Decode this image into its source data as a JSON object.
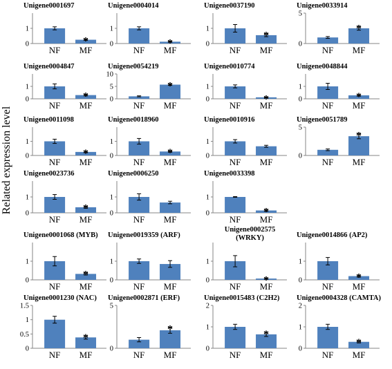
{
  "y_axis_label": "Related expression level",
  "colors": {
    "bar": "#4f81bd",
    "axis": "#868686",
    "error_bar": "#000000"
  },
  "chart_data": [
    {
      "type": "bar",
      "title": "Unigene0001697",
      "categories": [
        "NF",
        "MF"
      ],
      "values": [
        1.0,
        0.25
      ],
      "errors": [
        0.1,
        0.04
      ],
      "significant": [
        false,
        true
      ],
      "ylim": [
        0,
        2
      ],
      "yticks": [
        0,
        1
      ]
    },
    {
      "type": "bar",
      "title": "Unigene0004014",
      "categories": [
        "NF",
        "MF"
      ],
      "values": [
        1.0,
        0.12
      ],
      "errors": [
        0.1,
        0.03
      ],
      "significant": [
        false,
        true
      ],
      "ylim": [
        0,
        2
      ],
      "yticks": [
        0,
        1
      ]
    },
    {
      "type": "bar",
      "title": "Unigene0037190",
      "categories": [
        "NF",
        "MF"
      ],
      "values": [
        1.0,
        0.55
      ],
      "errors": [
        0.25,
        0.1
      ],
      "significant": [
        false,
        true
      ],
      "ylim": [
        0,
        2
      ],
      "yticks": [
        0,
        1
      ]
    },
    {
      "type": "bar",
      "title": "Unigene0033914",
      "categories": [
        "NF",
        "MF"
      ],
      "values": [
        1.0,
        2.5
      ],
      "errors": [
        0.15,
        0.3
      ],
      "significant": [
        false,
        true
      ],
      "ylim": [
        0,
        5
      ],
      "yticks": [
        0,
        5
      ]
    },
    {
      "type": "bar",
      "title": "Unigene0004847",
      "categories": [
        "NF",
        "MF"
      ],
      "values": [
        1.0,
        0.3
      ],
      "errors": [
        0.2,
        0.06
      ],
      "significant": [
        false,
        true
      ],
      "ylim": [
        0,
        2
      ],
      "yticks": [
        0,
        1
      ]
    },
    {
      "type": "bar",
      "title": "Unigene0054219",
      "categories": [
        "NF",
        "MF"
      ],
      "values": [
        1.0,
        5.7
      ],
      "errors": [
        0.2,
        0.3
      ],
      "significant": [
        false,
        true
      ],
      "ylim": [
        0,
        10
      ],
      "yticks": [
        0,
        5,
        10
      ]
    },
    {
      "type": "bar",
      "title": "Unigene0010774",
      "categories": [
        "NF",
        "MF"
      ],
      "values": [
        1.0,
        0.12
      ],
      "errors": [
        0.12,
        0.03
      ],
      "significant": [
        false,
        true
      ],
      "ylim": [
        0,
        2
      ],
      "yticks": [
        0,
        1
      ]
    },
    {
      "type": "bar",
      "title": "Unigene0048844",
      "categories": [
        "NF",
        "MF"
      ],
      "values": [
        1.0,
        0.28
      ],
      "errors": [
        0.25,
        0.06
      ],
      "significant": [
        false,
        true
      ],
      "ylim": [
        0,
        2
      ],
      "yticks": [
        0,
        1
      ]
    },
    {
      "type": "bar",
      "title": "Unigene0011098",
      "categories": [
        "NF",
        "MF"
      ],
      "values": [
        1.0,
        0.25
      ],
      "errors": [
        0.15,
        0.05
      ],
      "significant": [
        false,
        true
      ],
      "ylim": [
        0,
        2
      ],
      "yticks": [
        0,
        1
      ]
    },
    {
      "type": "bar",
      "title": "Unigene0018960",
      "categories": [
        "NF",
        "MF"
      ],
      "values": [
        1.0,
        0.28
      ],
      "errors": [
        0.2,
        0.05
      ],
      "significant": [
        false,
        true
      ],
      "ylim": [
        0,
        2
      ],
      "yticks": [
        0,
        1
      ]
    },
    {
      "type": "bar",
      "title": "Unigene0010916",
      "categories": [
        "NF",
        "MF"
      ],
      "values": [
        1.0,
        0.65
      ],
      "errors": [
        0.12,
        0.07
      ],
      "significant": [
        false,
        false
      ],
      "ylim": [
        0,
        2
      ],
      "yticks": [
        0,
        1
      ]
    },
    {
      "type": "bar",
      "title": "Unigene0051789",
      "categories": [
        "NF",
        "MF"
      ],
      "values": [
        1.0,
        3.4
      ],
      "errors": [
        0.15,
        0.45
      ],
      "significant": [
        false,
        true
      ],
      "ylim": [
        0,
        5
      ],
      "yticks": [
        0,
        5
      ]
    },
    {
      "type": "bar",
      "title": "Unigene0023736",
      "categories": [
        "NF",
        "MF"
      ],
      "values": [
        1.0,
        0.35
      ],
      "errors": [
        0.15,
        0.06
      ],
      "significant": [
        false,
        true
      ],
      "ylim": [
        0,
        2
      ],
      "yticks": [
        0,
        1
      ]
    },
    {
      "type": "bar",
      "title": "Unigene0006250",
      "categories": [
        "NF",
        "MF"
      ],
      "values": [
        1.0,
        0.65
      ],
      "errors": [
        0.2,
        0.08
      ],
      "significant": [
        false,
        false
      ],
      "ylim": [
        0,
        2
      ],
      "yticks": [
        0,
        1
      ]
    },
    {
      "type": "bar",
      "title": "Unigene0033398",
      "categories": [
        "NF",
        "MF"
      ],
      "values": [
        1.0,
        0.15
      ],
      "errors": [
        0.02,
        0.05
      ],
      "significant": [
        false,
        true
      ],
      "ylim": [
        0,
        2
      ],
      "yticks": [
        0,
        1
      ]
    },
    {
      "type": "bar",
      "title": "Unigene0001068 (MYB)",
      "categories": [
        "NF",
        "MF"
      ],
      "values": [
        1.0,
        0.32
      ],
      "errors": [
        0.25,
        0.06
      ],
      "significant": [
        false,
        true
      ],
      "ylim": [
        0,
        2
      ],
      "yticks": [
        0,
        1
      ]
    },
    {
      "type": "bar",
      "title": "Unigene0019359 (ARF)",
      "categories": [
        "NF",
        "MF"
      ],
      "values": [
        1.0,
        0.85
      ],
      "errors": [
        0.12,
        0.18
      ],
      "significant": [
        false,
        false
      ],
      "ylim": [
        0,
        2
      ],
      "yticks": [
        0,
        1
      ]
    },
    {
      "type": "bar",
      "title_lines": [
        "Unigene0002575",
        "(WRKY)"
      ],
      "categories": [
        "NF",
        "MF"
      ],
      "values": [
        1.0,
        0.07
      ],
      "errors": [
        0.3,
        0.03
      ],
      "significant": [
        false,
        true
      ],
      "ylim": [
        0,
        2
      ],
      "yticks": [
        0,
        1
      ]
    },
    {
      "type": "bar",
      "title": "Unigene0014866 (AP2)",
      "categories": [
        "NF",
        "MF"
      ],
      "values": [
        1.0,
        0.2
      ],
      "errors": [
        0.2,
        0.05
      ],
      "significant": [
        false,
        true
      ],
      "ylim": [
        0,
        2
      ],
      "yticks": [
        0,
        1
      ]
    },
    {
      "type": "bar",
      "title": "Unigene0001230 (NAC)",
      "categories": [
        "NF",
        "MF"
      ],
      "values": [
        1.0,
        0.38
      ],
      "errors": [
        0.12,
        0.06
      ],
      "significant": [
        false,
        true
      ],
      "ylim": [
        0,
        1.5
      ],
      "yticks": [
        0,
        0.5,
        1,
        1.5
      ]
    },
    {
      "type": "bar",
      "title": "Unigene0002871 (ERF)",
      "categories": [
        "NF",
        "MF"
      ],
      "values": [
        1.0,
        2.1
      ],
      "errors": [
        0.25,
        0.35
      ],
      "significant": [
        false,
        true
      ],
      "ylim": [
        0,
        5
      ],
      "yticks": [
        0,
        5
      ]
    },
    {
      "type": "bar",
      "title": "Unigene0015483 (C2H2)",
      "categories": [
        "NF",
        "MF"
      ],
      "values": [
        1.0,
        0.65
      ],
      "errors": [
        0.12,
        0.1
      ],
      "significant": [
        false,
        true
      ],
      "ylim": [
        0,
        2
      ],
      "yticks": [
        0,
        1,
        2
      ]
    },
    {
      "type": "bar",
      "title": "Unigene0004328 (CAMTA)",
      "categories": [
        "NF",
        "MF"
      ],
      "values": [
        1.0,
        0.3
      ],
      "errors": [
        0.12,
        0.05
      ],
      "significant": [
        false,
        true
      ],
      "ylim": [
        0,
        2
      ],
      "yticks": [
        0,
        1,
        2
      ]
    }
  ]
}
